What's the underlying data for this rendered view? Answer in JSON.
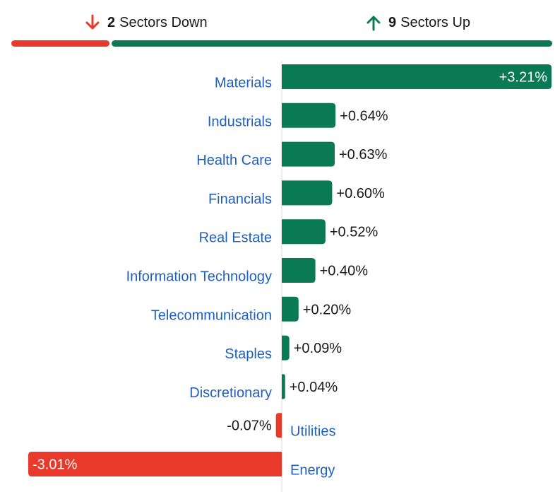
{
  "summary": {
    "down": {
      "count": "2",
      "label": "Sectors Down",
      "icon": "arrow-down-icon"
    },
    "up": {
      "count": "9",
      "label": "Sectors Up",
      "icon": "arrow-up-icon"
    }
  },
  "colors": {
    "positive": "#0a7a55",
    "negative": "#e8392a",
    "label": "#1f5fbf",
    "text": "#1a1a1a",
    "axis": "#d9d9d9"
  },
  "chart_data": {
    "type": "bar",
    "orientation": "horizontal",
    "categories": [
      "Materials",
      "Industrials",
      "Health Care",
      "Financials",
      "Real Estate",
      "Information Technology",
      "Telecommunication",
      "Staples",
      "Discretionary",
      "Utilities",
      "Energy"
    ],
    "values": [
      3.21,
      0.64,
      0.63,
      0.6,
      0.52,
      0.4,
      0.2,
      0.09,
      0.04,
      -0.07,
      -3.01
    ],
    "value_labels": [
      "+3.21%",
      "+0.64%",
      "+0.63%",
      "+0.60%",
      "+0.52%",
      "+0.40%",
      "+0.20%",
      "+0.09%",
      "+0.04%",
      "-0.07%",
      "-3.01%"
    ],
    "xlim": [
      -3.01,
      3.21
    ],
    "grid": false
  }
}
